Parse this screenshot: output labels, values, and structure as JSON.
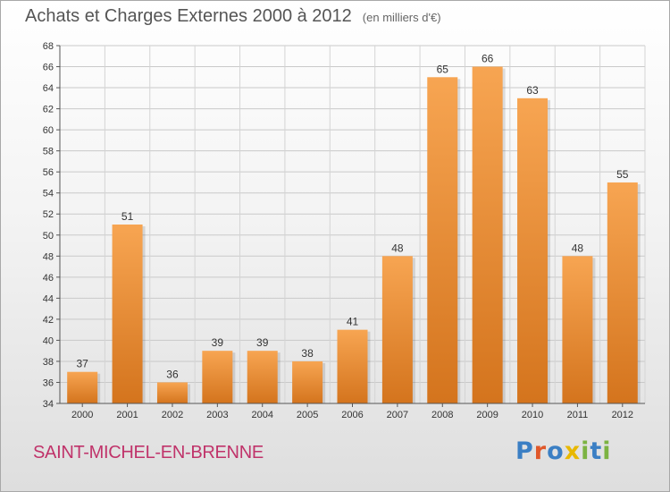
{
  "header": {
    "title": "Achats et Charges Externes 2000 à 2012",
    "subtitle": "(en milliers d'€)"
  },
  "footer": {
    "town": "SAINT-MICHEL-EN-BRENNE",
    "logo": {
      "text": "Proxiti",
      "letter_colors": [
        "#3b7fc4",
        "#e0582a",
        "#3b7fc4",
        "#e8b800",
        "#7cb342",
        "#3b7fc4",
        "#7cb342"
      ]
    }
  },
  "chart_data": {
    "type": "bar",
    "title": "Achats et Charges Externes 2000 à 2012",
    "xlabel": "",
    "ylabel": "",
    "categories": [
      "2000",
      "2001",
      "2002",
      "2003",
      "2004",
      "2005",
      "2006",
      "2007",
      "2008",
      "2009",
      "2010",
      "2011",
      "2012"
    ],
    "values": [
      37,
      51,
      36,
      39,
      39,
      38,
      41,
      48,
      65,
      66,
      63,
      48,
      55
    ],
    "ylim": [
      34,
      68
    ],
    "ytick_step": 2,
    "grid": true,
    "legend": "none",
    "bar_colors": {
      "top": "#f7a552",
      "bottom": "#d4741d"
    }
  }
}
